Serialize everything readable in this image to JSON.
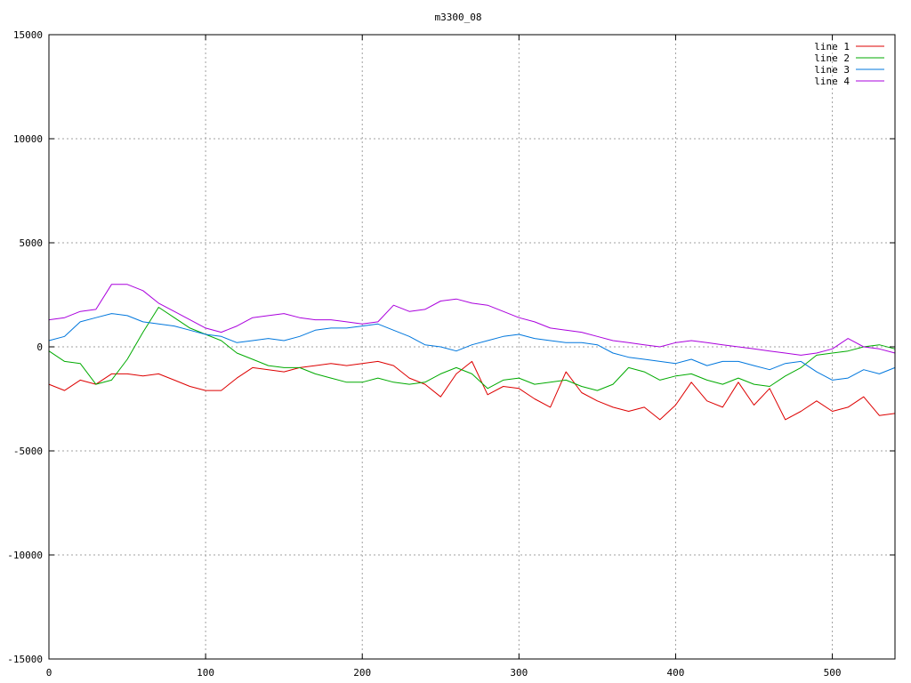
{
  "chart_data": {
    "type": "line",
    "title": "m3300_08",
    "xlabel": "",
    "ylabel": "",
    "xlim": [
      0,
      540
    ],
    "ylim": [
      -15000,
      15000
    ],
    "x_ticks": [
      0,
      100,
      200,
      300,
      400,
      500
    ],
    "y_ticks": [
      -15000,
      -10000,
      -5000,
      0,
      5000,
      10000,
      15000
    ],
    "x_tick_labels": [
      "0",
      "100",
      "200",
      "300",
      "400",
      "500"
    ],
    "y_tick_labels": [
      "-15000",
      "-10000",
      "-5000",
      "0",
      "5000",
      "10000",
      "15000"
    ],
    "grid": true,
    "legend_position": "top-right",
    "x": [
      0,
      10,
      20,
      30,
      40,
      50,
      60,
      70,
      80,
      90,
      100,
      110,
      120,
      130,
      140,
      150,
      160,
      170,
      180,
      190,
      200,
      210,
      220,
      230,
      240,
      250,
      260,
      270,
      280,
      290,
      300,
      310,
      320,
      330,
      340,
      350,
      360,
      370,
      380,
      390,
      400,
      410,
      420,
      430,
      440,
      450,
      460,
      470,
      480,
      490,
      500,
      510,
      520,
      530,
      540
    ],
    "series": [
      {
        "name": "line 1",
        "color": "#dd0000",
        "values": [
          -1800,
          -2100,
          -1600,
          -1800,
          -1300,
          -1300,
          -1400,
          -1300,
          -1600,
          -1900,
          -2100,
          -2100,
          -1500,
          -1000,
          -1100,
          -1200,
          -1000,
          -900,
          -800,
          -900,
          -800,
          -700,
          -900,
          -1500,
          -1800,
          -2400,
          -1300,
          -700,
          -2300,
          -1900,
          -2000,
          -2500,
          -2900,
          -1200,
          -2200,
          -2600,
          -2900,
          -3100,
          -2900,
          -3500,
          -2800,
          -1700,
          -2600,
          -2900,
          -1700,
          -2800,
          -2000,
          -3500,
          -3100,
          -2600,
          -3100,
          -2900,
          -2400,
          -3300,
          -3200
        ]
      },
      {
        "name": "line 2",
        "color": "#00aa00",
        "values": [
          -200,
          -700,
          -800,
          -1800,
          -1600,
          -600,
          700,
          1900,
          1400,
          900,
          600,
          300,
          -300,
          -600,
          -900,
          -1000,
          -1000,
          -1300,
          -1500,
          -1700,
          -1700,
          -1500,
          -1700,
          -1800,
          -1700,
          -1300,
          -1000,
          -1300,
          -2000,
          -1600,
          -1500,
          -1800,
          -1700,
          -1600,
          -1900,
          -2100,
          -1800,
          -1000,
          -1200,
          -1600,
          -1400,
          -1300,
          -1600,
          -1800,
          -1500,
          -1800,
          -1900,
          -1400,
          -1000,
          -400,
          -300,
          -200,
          0,
          100,
          -100
        ]
      },
      {
        "name": "line 3",
        "color": "#0077dd",
        "values": [
          300,
          500,
          1200,
          1400,
          1600,
          1500,
          1200,
          1100,
          1000,
          800,
          600,
          500,
          200,
          300,
          400,
          300,
          500,
          800,
          900,
          900,
          1000,
          1100,
          800,
          500,
          100,
          0,
          -200,
          100,
          300,
          500,
          600,
          400,
          300,
          200,
          200,
          100,
          -300,
          -500,
          -600,
          -700,
          -800,
          -600,
          -900,
          -700,
          -700,
          -900,
          -1100,
          -800,
          -700,
          -1200,
          -1600,
          -1500,
          -1100,
          -1300,
          -1000
        ]
      },
      {
        "name": "line 4",
        "color": "#aa00dd",
        "values": [
          1300,
          1400,
          1700,
          1800,
          3000,
          3000,
          2700,
          2100,
          1700,
          1300,
          900,
          700,
          1000,
          1400,
          1500,
          1600,
          1400,
          1300,
          1300,
          1200,
          1100,
          1200,
          2000,
          1700,
          1800,
          2200,
          2300,
          2100,
          2000,
          1700,
          1400,
          1200,
          900,
          800,
          700,
          500,
          300,
          200,
          100,
          0,
          200,
          300,
          200,
          100,
          0,
          -100,
          -200,
          -300,
          -400,
          -300,
          -100,
          400,
          0,
          -100,
          -300
        ]
      }
    ]
  }
}
